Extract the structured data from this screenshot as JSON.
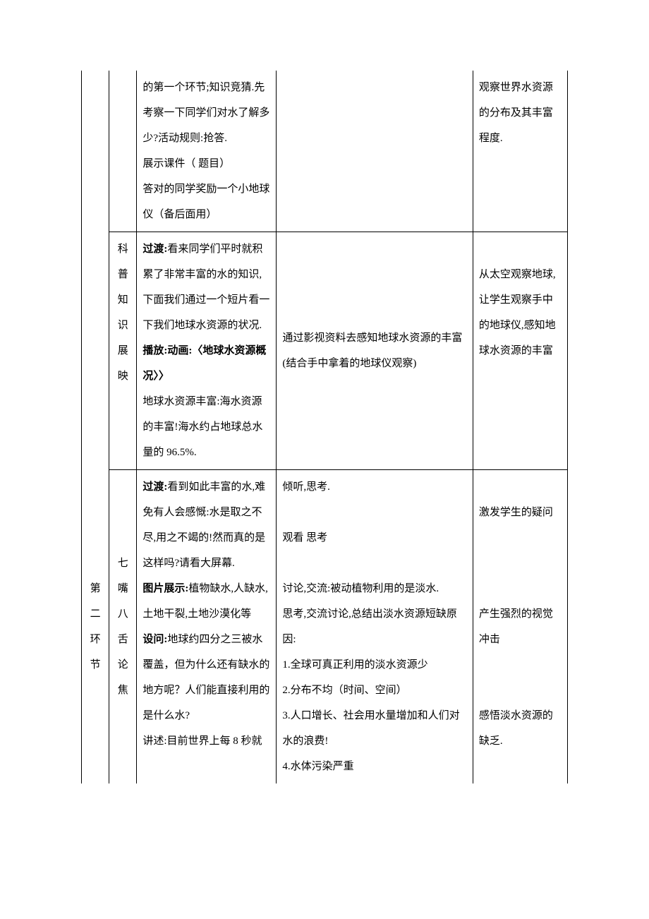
{
  "rows": [
    {
      "col1": "",
      "col2": "",
      "col3_parts": [
        {
          "text": "的第一个环节;知识竞猜.先考察一下同学们对水了解多少?活动规则:抢答.",
          "bold": false
        },
        {
          "text": "展示课件（ 题目）",
          "bold": false
        },
        {
          "text": "答对的同学奖励一个小地球仪（备后面用）",
          "bold": false
        }
      ],
      "col4": "",
      "col5": "观察世界水资源的分布及其丰富程度."
    },
    {
      "col1": "",
      "col2": "科普知识展映",
      "col3_parts": [
        {
          "text": "过渡:",
          "bold": true,
          "inline": true
        },
        {
          "text": "看来同学们平时就积累了非常丰富的水的知识,下面我们通过一个短片看一下我们地球水资源的状况.",
          "bold": false,
          "inline": true
        },
        {
          "text": "播放:动画:〈地球水资源概况〉〉",
          "bold": true
        },
        {
          "text": "地球水资源丰富:海水资源的丰富!海水约占地球总水量的 96.5%.",
          "bold": false
        }
      ],
      "col4": "通过影视资料去感知地球水资源的丰富(结合手中拿着的地球仪观察)",
      "col5": "从太空观察地球,让学生观察手中的地球仪,感知地球水资源的丰富"
    },
    {
      "col1": "第二环节",
      "col2": "七嘴八舌论焦",
      "col3_parts": [
        {
          "text": "过渡:",
          "bold": true,
          "inline": true
        },
        {
          "text": "看到如此丰富的水,难免有人会感慨:水是取之不尽,用之不竭的!然而真的是这样吗?请看大屏幕.",
          "bold": false,
          "inline": true
        },
        {
          "text": "图片展示:",
          "bold": true,
          "inline": true
        },
        {
          "text": "植物缺水,人缺水,土地干裂,土地沙漠化等",
          "bold": false,
          "inline": true
        },
        {
          "text": "设问:",
          "bold": true,
          "inline": true
        },
        {
          "text": "地球约四分之三被水覆盖，但为什么还有缺水的地方呢？人们能直接利用的是什么水?",
          "bold": false,
          "inline": true
        },
        {
          "text": "讲述:目前世界上每 8 秒就",
          "bold": false
        }
      ],
      "col4_parts": [
        "倾听,思考.",
        "",
        "观看  思考",
        "",
        "讨论,交流:被动植物利用的是淡水.",
        "思考,交流讨论,总结出淡水资源短缺原因:",
        "1.全球可真正利用的淡水资源少",
        "2.分布不均（时间、空间）",
        "3.人口增长、社会用水量增加和人们对水的浪费!",
        "4.水体污染严重"
      ],
      "col5_parts": [
        "",
        "激发学生的疑问",
        "",
        "",
        "",
        "产生强烈的视觉冲击",
        "",
        "",
        "感悟淡水资源的缺乏."
      ]
    }
  ]
}
